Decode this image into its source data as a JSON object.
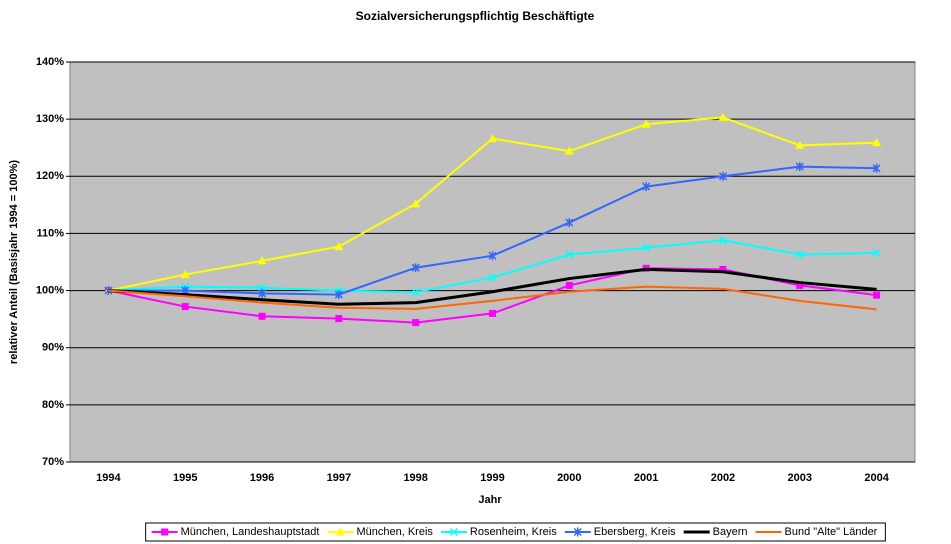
{
  "chart_data": {
    "type": "line",
    "title": "Sozialversicherungspflichtig Beschäftigte",
    "x_label": "Jahr",
    "y_label": "relativer Anteil (Basisjahr 1994 = 100%)",
    "categories": [
      "1994",
      "1995",
      "1996",
      "1997",
      "1998",
      "1999",
      "2000",
      "2001",
      "2002",
      "2003",
      "2004"
    ],
    "series": [
      {
        "name": "München, Landeshauptstadt",
        "color": "#ff00ff",
        "marker": "square",
        "values": [
          100,
          97.2,
          95.5,
          95.1,
          94.4,
          96.0,
          100.9,
          103.9,
          103.7,
          100.9,
          99.2
        ]
      },
      {
        "name": "München, Kreis",
        "color": "#ffff00",
        "marker": "triangle",
        "values": [
          100,
          102.8,
          105.2,
          107.7,
          115.2,
          126.6,
          124.4,
          129.1,
          130.3,
          125.4,
          125.9
        ]
      },
      {
        "name": "Rosenheim, Kreis",
        "color": "#00ffff",
        "marker": "x",
        "values": [
          100,
          100.7,
          100.5,
          100,
          99.7,
          102.3,
          106.3,
          107.5,
          108.8,
          106.3,
          106.6
        ]
      },
      {
        "name": "Ebersberg, Kreis",
        "color": "#3366ff",
        "marker": "asterisk",
        "values": [
          100,
          100,
          99.5,
          99.3,
          104.0,
          106.1,
          111.9,
          118.2,
          120.0,
          121.7,
          121.4
        ]
      },
      {
        "name": "Bayern",
        "color": "#000000",
        "marker": "none",
        "width": 3,
        "values": [
          100,
          99.3,
          98.4,
          97.6,
          97.9,
          99.8,
          102.1,
          103.7,
          103.3,
          101.4,
          100.2
        ]
      },
      {
        "name": "Bund \"Alte\" Länder",
        "color": "#ff6600",
        "marker": "none",
        "values": [
          100,
          99.0,
          97.9,
          97.0,
          96.8,
          98.2,
          99.8,
          100.7,
          100.3,
          98.2,
          96.7
        ]
      }
    ],
    "ylim": [
      70,
      140
    ],
    "yticks": [
      {
        "value": 70,
        "label": "70%"
      },
      {
        "value": 80,
        "label": "80%"
      },
      {
        "value": 90,
        "label": "90%"
      },
      {
        "value": 100,
        "label": "100%"
      },
      {
        "value": 110,
        "label": "110%"
      },
      {
        "value": 120,
        "label": "120%"
      },
      {
        "value": 130,
        "label": "130%"
      },
      {
        "value": 140,
        "label": "140%"
      }
    ],
    "grid": true,
    "legend": "bottom"
  }
}
